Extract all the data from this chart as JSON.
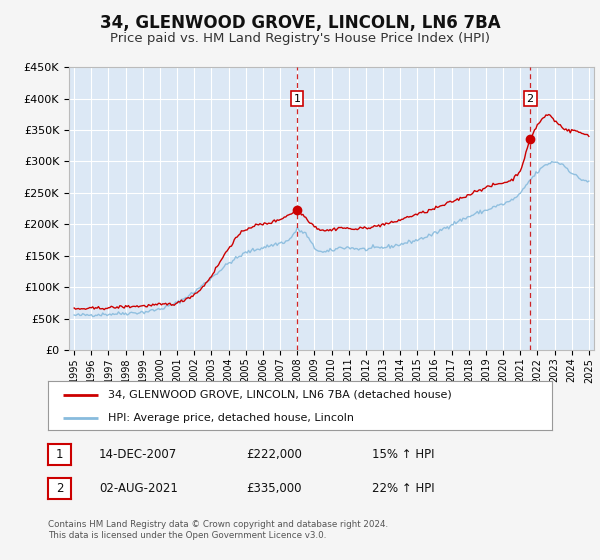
{
  "title": "34, GLENWOOD GROVE, LINCOLN, LN6 7BA",
  "subtitle": "Price paid vs. HM Land Registry's House Price Index (HPI)",
  "title_fontsize": 12,
  "subtitle_fontsize": 9.5,
  "background_color": "#f5f5f5",
  "plot_bg_color": "#dce8f5",
  "grid_color": "#ffffff",
  "red_line_color": "#cc0000",
  "blue_line_color": "#88bbdd",
  "marker1_date": 2007.96,
  "marker1_value": 222000,
  "marker2_date": 2021.58,
  "marker2_value": 335000,
  "vline1_x": 2008.0,
  "vline2_x": 2021.58,
  "vline_color": "#cc0000",
  "ylim": [
    0,
    450000
  ],
  "xlim": [
    1994.7,
    2025.3
  ],
  "yticks": [
    0,
    50000,
    100000,
    150000,
    200000,
    250000,
    300000,
    350000,
    400000,
    450000
  ],
  "xticks": [
    1995,
    1996,
    1997,
    1998,
    1999,
    2000,
    2001,
    2002,
    2003,
    2004,
    2005,
    2006,
    2007,
    2008,
    2009,
    2010,
    2011,
    2012,
    2013,
    2014,
    2015,
    2016,
    2017,
    2018,
    2019,
    2020,
    2021,
    2022,
    2023,
    2024,
    2025
  ],
  "legend_label_red": "34, GLENWOOD GROVE, LINCOLN, LN6 7BA (detached house)",
  "legend_label_blue": "HPI: Average price, detached house, Lincoln",
  "annotation1_label": "1",
  "annotation1_date": "14-DEC-2007",
  "annotation1_price": "£222,000",
  "annotation1_hpi": "15% ↑ HPI",
  "annotation2_label": "2",
  "annotation2_date": "02-AUG-2021",
  "annotation2_price": "£335,000",
  "annotation2_hpi": "22% ↑ HPI",
  "footer": "Contains HM Land Registry data © Crown copyright and database right 2024.\nThis data is licensed under the Open Government Licence v3.0."
}
